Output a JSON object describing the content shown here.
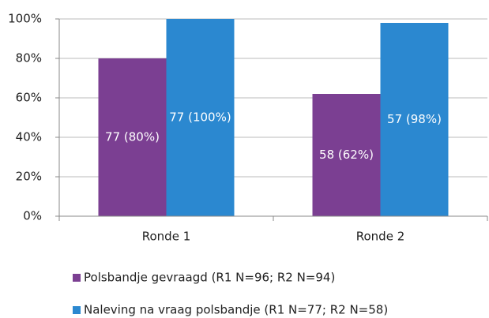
{
  "chart_data": {
    "type": "bar",
    "categories": [
      "Ronde 1",
      "Ronde 2"
    ],
    "series": [
      {
        "name": "Polsbandje gevraagd (R1 N=96; R2 N=94)",
        "color": "#7b3f92",
        "values": [
          80,
          62
        ],
        "value_labels": [
          "77 (80%)",
          "58 (62%)"
        ]
      },
      {
        "name": "Naleving na vraag polsbandje (R1 N=77; R2 N=58)",
        "color": "#2b88d0",
        "values": [
          100,
          98
        ],
        "value_labels": [
          "77 (100%)",
          "57 (98%)"
        ]
      }
    ],
    "ylim": [
      0,
      100
    ],
    "yticks": [
      {
        "value": 0,
        "label": "0%"
      },
      {
        "value": 20,
        "label": "20%"
      },
      {
        "value": 40,
        "label": "40%"
      },
      {
        "value": 60,
        "label": "60%"
      },
      {
        "value": 80,
        "label": "80%"
      },
      {
        "value": 100,
        "label": "100%"
      }
    ],
    "grid": true,
    "legend": "bottom"
  }
}
